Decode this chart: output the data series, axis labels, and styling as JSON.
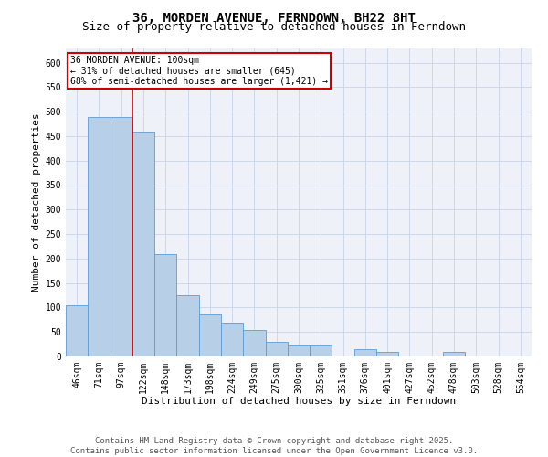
{
  "title": "36, MORDEN AVENUE, FERNDOWN, BH22 8HT",
  "subtitle": "Size of property relative to detached houses in Ferndown",
  "xlabel": "Distribution of detached houses by size in Ferndown",
  "ylabel": "Number of detached properties",
  "categories": [
    "46sqm",
    "71sqm",
    "97sqm",
    "122sqm",
    "148sqm",
    "173sqm",
    "198sqm",
    "224sqm",
    "249sqm",
    "275sqm",
    "300sqm",
    "325sqm",
    "351sqm",
    "376sqm",
    "401sqm",
    "427sqm",
    "452sqm",
    "478sqm",
    "503sqm",
    "528sqm",
    "554sqm"
  ],
  "values": [
    105,
    490,
    490,
    460,
    210,
    125,
    85,
    70,
    55,
    30,
    22,
    22,
    0,
    15,
    10,
    0,
    0,
    10,
    0,
    0,
    0
  ],
  "bar_color": "#b8cfe8",
  "bar_edge_color": "#5b9bd5",
  "grid_color": "#c8d4e8",
  "background_color": "#eef2f8",
  "vline_x": 2.5,
  "vline_color": "#cc0000",
  "annotation_text": "36 MORDEN AVENUE: 100sqm\n← 31% of detached houses are smaller (645)\n68% of semi-detached houses are larger (1,421) →",
  "annotation_box_color": "#cc0000",
  "footer_text": "Contains HM Land Registry data © Crown copyright and database right 2025.\nContains public sector information licensed under the Open Government Licence v3.0.",
  "ylim": [
    0,
    630
  ],
  "yticks": [
    0,
    50,
    100,
    150,
    200,
    250,
    300,
    350,
    400,
    450,
    500,
    550,
    600
  ],
  "title_fontsize": 10,
  "subtitle_fontsize": 9,
  "axis_label_fontsize": 8,
  "tick_fontsize": 7,
  "footer_fontsize": 6.5,
  "annotation_fontsize": 7
}
